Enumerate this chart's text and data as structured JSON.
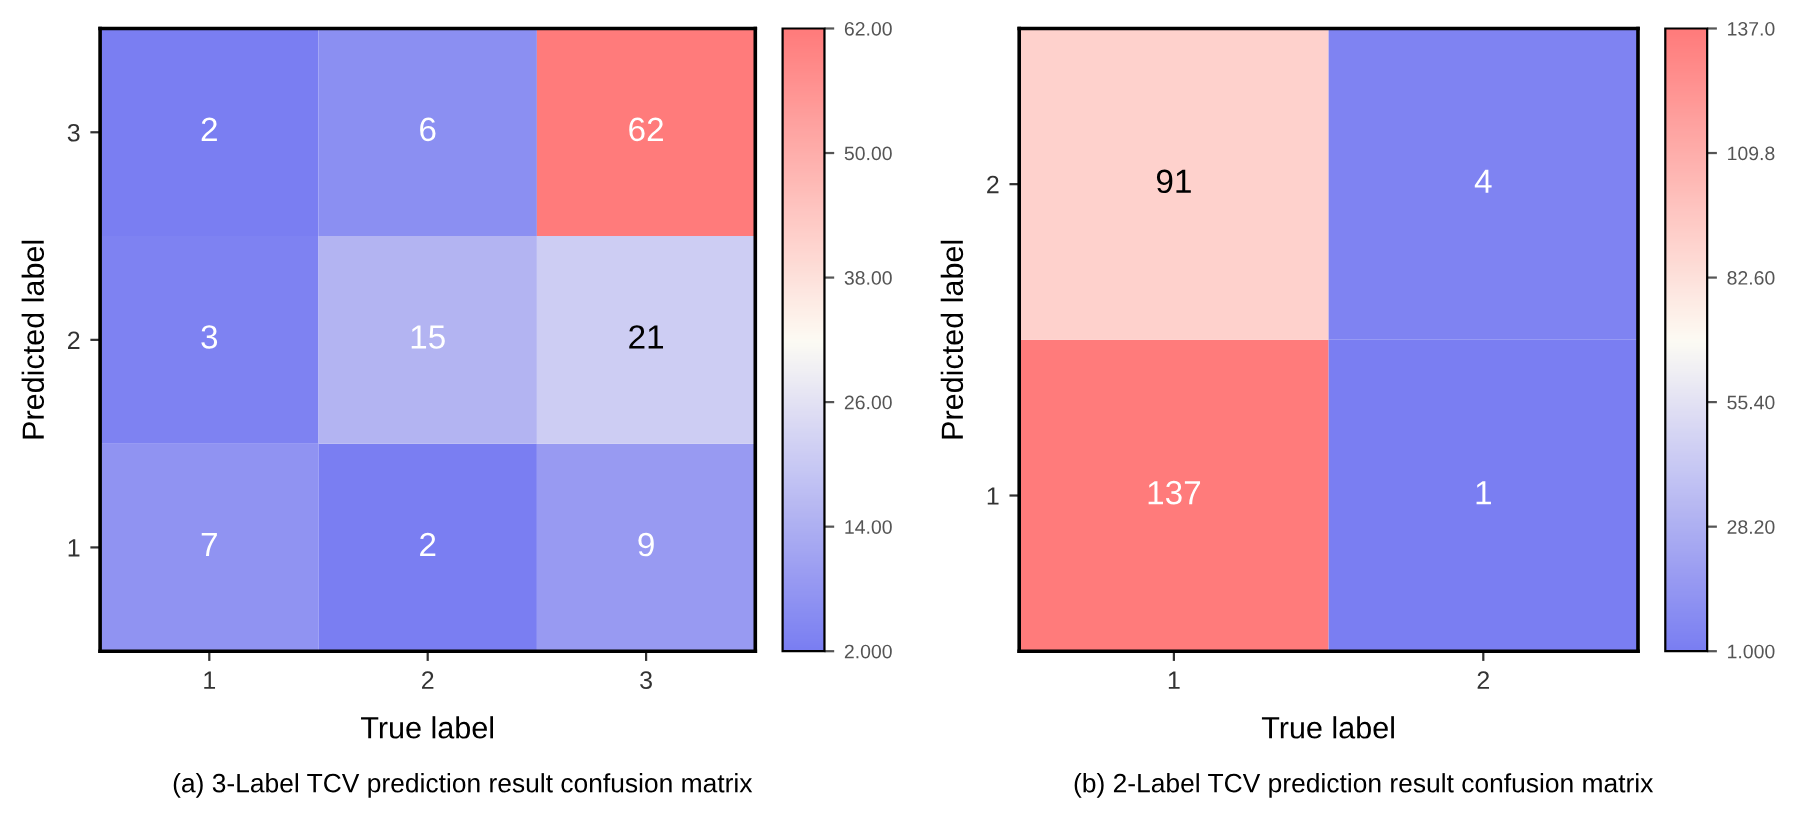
{
  "chart_data": [
    {
      "type": "heatmap",
      "xlabel": "True label",
      "ylabel": "Predicted label",
      "categories": [
        "1",
        "2",
        "3"
      ],
      "y_categories": [
        "3",
        "2",
        "1"
      ],
      "cells": [
        [
          2,
          6,
          62
        ],
        [
          3,
          15,
          21
        ],
        [
          7,
          2,
          9
        ]
      ],
      "data_labels": true,
      "clim": [
        2,
        62
      ],
      "cticks": [
        {
          "value": 2,
          "label": "2.000"
        },
        {
          "value": 14,
          "label": "14.00"
        },
        {
          "value": 26,
          "label": "26.00"
        },
        {
          "value": 38,
          "label": "38.00"
        },
        {
          "value": 50,
          "label": "50.00"
        },
        {
          "value": 62,
          "label": "62.00"
        }
      ],
      "annotations": [
        "(a) 3-Label TCV prediction result confusion matrix"
      ]
    },
    {
      "type": "heatmap",
      "xlabel": "True label",
      "ylabel": "Predicted label",
      "categories": [
        "1",
        "2"
      ],
      "y_categories": [
        "2",
        "1"
      ],
      "cells": [
        [
          91,
          4
        ],
        [
          137,
          1
        ]
      ],
      "data_labels": true,
      "clim": [
        1,
        137
      ],
      "cticks": [
        {
          "value": 1,
          "label": "1.000"
        },
        {
          "value": 28.2,
          "label": "28.20"
        },
        {
          "value": 55.4,
          "label": "55.40"
        },
        {
          "value": 82.6,
          "label": "82.60"
        },
        {
          "value": 109.8,
          "label": "109.8"
        },
        {
          "value": 137,
          "label": "137.0"
        }
      ],
      "annotations": [
        "(b) 2-Label TCV prediction result confusion matrix"
      ]
    }
  ]
}
